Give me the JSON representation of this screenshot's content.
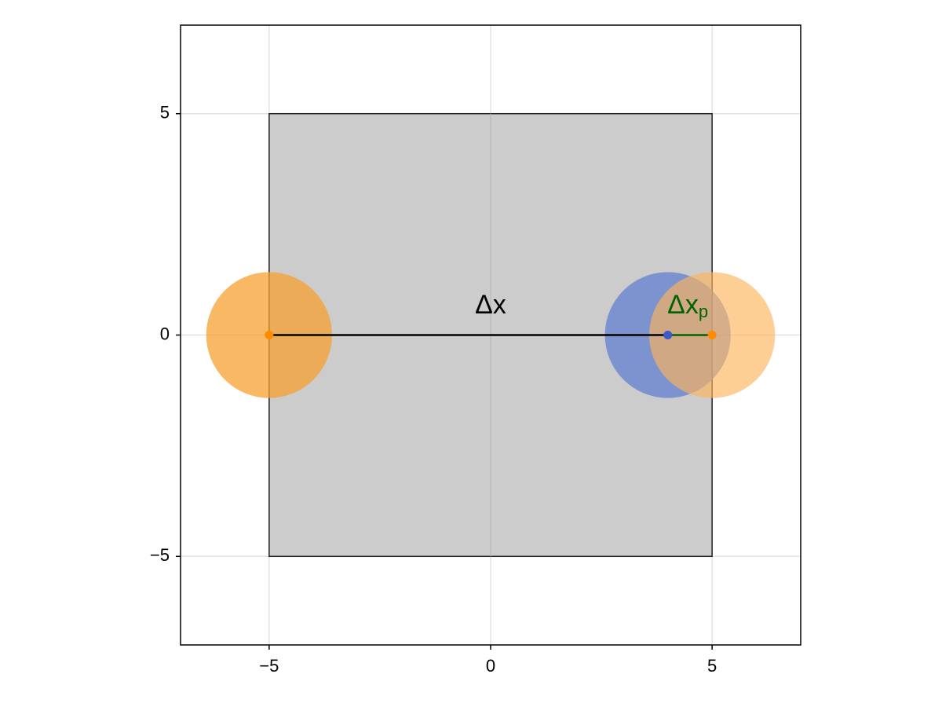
{
  "chart_data": {
    "type": "scatter",
    "title": "",
    "xlabel": "",
    "ylabel": "",
    "xlim": [
      -7,
      7
    ],
    "ylim": [
      -7,
      7
    ],
    "grid": true,
    "x_ticks": [
      -5,
      0,
      5
    ],
    "y_ticks": [
      -5,
      0,
      5
    ],
    "x_tick_labels": [
      "−5",
      "0",
      "5"
    ],
    "y_tick_labels": [
      "−5",
      "0",
      "5"
    ],
    "box": {
      "x": [
        -5,
        5
      ],
      "y": [
        -5,
        5
      ],
      "fill": "#cccccc",
      "stroke": "#222222"
    },
    "circles": [
      {
        "id": "orange-left",
        "cx": -5,
        "cy": 0,
        "r": 1.42,
        "color": "#f5a030",
        "opacity": 0.75
      },
      {
        "id": "blue",
        "cx": 4,
        "cy": 0,
        "r": 1.42,
        "color": "#5b7bd0",
        "opacity": 0.7
      },
      {
        "id": "orange-right",
        "cx": 5,
        "cy": 0,
        "r": 1.42,
        "color": "#fdb55c",
        "opacity": 0.65
      }
    ],
    "points": [
      {
        "id": "point-left",
        "x": -5,
        "y": 0,
        "color": "#ff8c00"
      },
      {
        "id": "point-blue",
        "x": 4,
        "y": 0,
        "color": "#3a5bc8"
      },
      {
        "id": "point-right",
        "x": 5,
        "y": 0,
        "color": "#ff8c00"
      }
    ],
    "segments": [
      {
        "id": "delta-x-line",
        "x": [
          -5,
          4
        ],
        "y": [
          0,
          0
        ],
        "color": "#000000"
      },
      {
        "id": "delta-xp-line",
        "x": [
          4,
          5
        ],
        "y": [
          0,
          0
        ],
        "color": "#006400"
      }
    ],
    "annotations": [
      {
        "id": "delta-x-label",
        "text": "Δx",
        "x": 0,
        "y": 0.65,
        "color": "#000000"
      },
      {
        "id": "delta-xp-label",
        "text": "Δx",
        "sub": "p",
        "x": 4.45,
        "y": 0.65,
        "color": "#006400"
      }
    ]
  }
}
